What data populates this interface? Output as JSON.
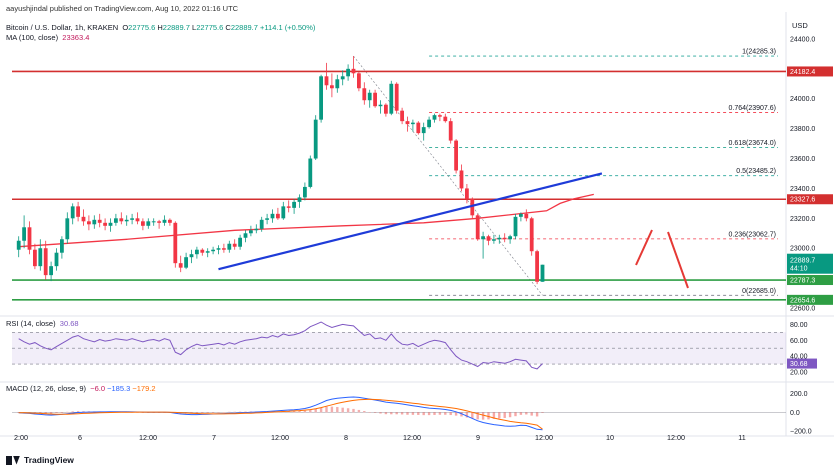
{
  "author_line": "aayushjindal published on TradingView.com, Aug 10, 2022 01:16 UTC",
  "symbol": {
    "name": "Bitcoin / U.S. Dollar, 1h, KRAKEN",
    "o_label": "O",
    "o": "22775.6",
    "h_label": "H",
    "h": "22889.7",
    "l_label": "L",
    "l": "22775.6",
    "c_label": "C",
    "c": "22889.7",
    "change": "+114.1 (+0.50%)"
  },
  "ma": {
    "label": "MA (100, close)",
    "value": "23363.4"
  },
  "rsi": {
    "label": "RSI (14, close)",
    "value": "30.68"
  },
  "macd": {
    "label": "MACD (12, 26, close, 9)",
    "v1": "−6.0",
    "v2": "−185.3",
    "v3": "−179.2"
  },
  "currency": "USD",
  "footer": "TradingView",
  "colors": {
    "up": "#089981",
    "down": "#f23645",
    "ma": "#f23645",
    "trend": "#1e3bd8",
    "hline": "#d32f2f",
    "support": "#2e9e44"
  },
  "chart_data": {
    "type": "candlestick",
    "x_ticks": [
      "2:00",
      "6",
      "12:00",
      "7",
      "12:00",
      "8",
      "12:00",
      "9",
      "12:00",
      "10",
      "12:00",
      "11"
    ],
    "y_ticks": [
      22600,
      22800,
      23000,
      23200,
      23400,
      23600,
      23800,
      24000,
      24200,
      24400
    ],
    "y_tick_labels": [
      "22600.0",
      "22800.0",
      "23000.0",
      "23200.0",
      "23400.0",
      "23600.0",
      "23800.0",
      "24000.0",
      "24200.0",
      "24400.0"
    ],
    "ylim": [
      22560,
      24540
    ],
    "candles": [
      [
        22990,
        23080,
        22940,
        23050
      ],
      [
        23050,
        23220,
        23000,
        23140
      ],
      [
        23140,
        23180,
        22960,
        22990
      ],
      [
        22990,
        23030,
        22860,
        22880
      ],
      [
        22880,
        23060,
        22850,
        23000
      ],
      [
        23000,
        23050,
        22790,
        22820
      ],
      [
        22820,
        22910,
        22780,
        22880
      ],
      [
        22880,
        23000,
        22850,
        22970
      ],
      [
        22970,
        23080,
        22930,
        23060
      ],
      [
        23060,
        23240,
        23030,
        23200
      ],
      [
        23200,
        23300,
        23160,
        23280
      ],
      [
        23280,
        23310,
        23180,
        23210
      ],
      [
        23210,
        23260,
        23150,
        23180
      ],
      [
        23180,
        23220,
        23120,
        23160
      ],
      [
        23160,
        23220,
        23130,
        23190
      ],
      [
        23190,
        23230,
        23140,
        23170
      ],
      [
        23170,
        23200,
        23120,
        23150
      ],
      [
        23150,
        23200,
        23110,
        23170
      ],
      [
        23170,
        23230,
        23150,
        23200
      ],
      [
        23200,
        23240,
        23160,
        23180
      ],
      [
        23180,
        23220,
        23150,
        23190
      ],
      [
        23190,
        23230,
        23160,
        23200
      ],
      [
        23200,
        23240,
        23160,
        23180
      ],
      [
        23180,
        23200,
        23120,
        23150
      ],
      [
        23150,
        23200,
        23130,
        23180
      ],
      [
        23180,
        23200,
        23150,
        23180
      ],
      [
        23180,
        23190,
        23130,
        23170
      ],
      [
        23170,
        23220,
        23150,
        23190
      ],
      [
        23190,
        23200,
        23150,
        23170
      ],
      [
        23170,
        23180,
        22870,
        22900
      ],
      [
        22900,
        22950,
        22840,
        22870
      ],
      [
        22870,
        22970,
        22860,
        22940
      ],
      [
        22940,
        22990,
        22900,
        22960
      ],
      [
        22960,
        23010,
        22930,
        22990
      ],
      [
        22990,
        23000,
        22950,
        22970
      ],
      [
        22970,
        23000,
        22940,
        22980
      ],
      [
        22980,
        23010,
        22960,
        22990
      ],
      [
        22990,
        23020,
        22960,
        23000
      ],
      [
        23000,
        23030,
        22970,
        22990
      ],
      [
        22990,
        23050,
        22970,
        23030
      ],
      [
        23030,
        23060,
        22990,
        23010
      ],
      [
        23010,
        23090,
        22990,
        23070
      ],
      [
        23070,
        23120,
        23040,
        23100
      ],
      [
        23100,
        23150,
        23080,
        23120
      ],
      [
        23120,
        23160,
        23100,
        23130
      ],
      [
        23130,
        23210,
        23110,
        23190
      ],
      [
        23190,
        23230,
        23160,
        23200
      ],
      [
        23200,
        23260,
        23170,
        23230
      ],
      [
        23230,
        23270,
        23190,
        23200
      ],
      [
        23200,
        23310,
        23190,
        23280
      ],
      [
        23280,
        23320,
        23240,
        23270
      ],
      [
        23270,
        23330,
        23230,
        23310
      ],
      [
        23310,
        23360,
        23270,
        23340
      ],
      [
        23340,
        23440,
        23320,
        23410
      ],
      [
        23410,
        23620,
        23400,
        23600
      ],
      [
        23600,
        23890,
        23590,
        23860
      ],
      [
        23860,
        24160,
        23840,
        24150
      ],
      [
        24150,
        24240,
        24060,
        24090
      ],
      [
        24090,
        24170,
        24010,
        24070
      ],
      [
        24070,
        24160,
        24040,
        24130
      ],
      [
        24130,
        24190,
        24090,
        24150
      ],
      [
        24150,
        24230,
        24120,
        24200
      ],
      [
        24200,
        24285,
        24140,
        24170
      ],
      [
        24170,
        24180,
        24050,
        24070
      ],
      [
        24070,
        24110,
        23960,
        23990
      ],
      [
        23990,
        24060,
        23940,
        24040
      ],
      [
        24040,
        24060,
        23940,
        23950
      ],
      [
        23950,
        23990,
        23900,
        23960
      ],
      [
        23960,
        23970,
        23880,
        23900
      ],
      [
        23900,
        24120,
        23890,
        24100
      ],
      [
        24100,
        24110,
        23900,
        23920
      ],
      [
        23920,
        23940,
        23830,
        23850
      ],
      [
        23850,
        23880,
        23780,
        23830
      ],
      [
        23830,
        23860,
        23780,
        23840
      ],
      [
        23840,
        23850,
        23760,
        23770
      ],
      [
        23770,
        23840,
        23720,
        23810
      ],
      [
        23810,
        23880,
        23800,
        23860
      ],
      [
        23860,
        23900,
        23840,
        23890
      ],
      [
        23890,
        23900,
        23850,
        23880
      ],
      [
        23880,
        23900,
        23840,
        23850
      ],
      [
        23850,
        23870,
        23700,
        23720
      ],
      [
        23720,
        23730,
        23500,
        23520
      ],
      [
        23520,
        23560,
        23380,
        23400
      ],
      [
        23400,
        23430,
        23300,
        23330
      ],
      [
        23330,
        23340,
        23200,
        23220
      ],
      [
        23220,
        23230,
        23050,
        23060
      ],
      [
        23060,
        23110,
        22930,
        23080
      ],
      [
        23080,
        23090,
        23020,
        23050
      ],
      [
        23050,
        23090,
        23030,
        23060
      ],
      [
        23060,
        23090,
        23030,
        23070
      ],
      [
        23070,
        23100,
        23040,
        23060
      ],
      [
        23060,
        23090,
        23030,
        23080
      ],
      [
        23080,
        23230,
        23060,
        23210
      ],
      [
        23210,
        23240,
        23180,
        23230
      ],
      [
        23230,
        23260,
        23180,
        23200
      ],
      [
        23200,
        23210,
        22950,
        22980
      ],
      [
        22980,
        22990,
        22760,
        22775.6
      ],
      [
        22775.6,
        22889.7,
        22775.6,
        22889.7
      ]
    ],
    "ma100": [
      [
        0,
        23010
      ],
      [
        20,
        23060
      ],
      [
        40,
        23120
      ],
      [
        60,
        23150
      ],
      [
        75,
        23170
      ],
      [
        85,
        23200
      ],
      [
        100,
        23250
      ],
      [
        110,
        23300
      ],
      [
        120,
        23330
      ],
      [
        135,
        23360
      ]
    ],
    "hlines": [
      {
        "value": 24182.4,
        "label": "24182.4",
        "color": "#d32f2f"
      },
      {
        "value": 23327.6,
        "label": "23327.6",
        "color": "#d32f2f"
      },
      {
        "value": 22787.3,
        "label": "22787.3",
        "color": "#2e9e44"
      },
      {
        "value": 22654.6,
        "label": "22654.6",
        "color": "#2e9e44"
      }
    ],
    "fib_levels": [
      {
        "label": "1(24285.3)",
        "value": 24285.3,
        "color": "#26a69a"
      },
      {
        "label": "0.764(23907.6)",
        "value": 23907.6,
        "color": "#f23645"
      },
      {
        "label": "0.618(23674.0)",
        "value": 23674.0,
        "color": "#089981"
      },
      {
        "label": "0.5(23485.2)",
        "value": 23485.2,
        "color": "#26a69a"
      },
      {
        "label": "0.236(23062.7)",
        "value": 23062.7,
        "color": "#f23645"
      },
      {
        "label": "0(22685.0)",
        "value": 22685.0,
        "color": "#787b86"
      }
    ],
    "price_tags": [
      {
        "label": "22889.7",
        "sub": "44:10",
        "color": "#089981"
      }
    ],
    "rsi": {
      "y_ticks": [
        20,
        40,
        60,
        80
      ],
      "y_tick_labels": [
        "20.00",
        "40.00",
        "60.00",
        "80.00"
      ],
      "ylim": [
        10,
        88
      ],
      "band": [
        30,
        70
      ],
      "values": [
        62,
        58,
        55,
        57,
        53,
        50,
        48,
        52,
        56,
        60,
        64,
        66,
        62,
        60,
        58,
        61,
        59,
        60,
        62,
        61,
        60,
        62,
        60,
        58,
        60,
        61,
        59,
        62,
        60,
        45,
        42,
        48,
        52,
        55,
        53,
        54,
        55,
        56,
        54,
        57,
        55,
        58,
        60,
        61,
        62,
        64,
        63,
        66,
        64,
        68,
        66,
        67,
        69,
        72,
        77,
        80,
        83,
        79,
        76,
        78,
        80,
        79,
        78,
        72,
        66,
        68,
        62,
        63,
        60,
        68,
        60,
        55,
        54,
        56,
        52,
        55,
        58,
        60,
        59,
        57,
        48,
        40,
        35,
        33,
        30,
        27,
        32,
        31,
        33,
        32,
        31,
        33,
        36,
        35,
        34,
        26,
        24,
        30.68
      ]
    },
    "macd": {
      "y_ticks": [
        -200,
        0,
        200
      ],
      "y_tick_labels": [
        "−200.0",
        "0.0",
        "200.0"
      ],
      "ylim": [
        -230,
        300
      ],
      "macd": [
        -5,
        -8,
        -12,
        -18,
        -22,
        -28,
        -30,
        -27,
        -22,
        -15,
        -8,
        -2,
        0,
        2,
        3,
        4,
        4,
        5,
        6,
        6,
        5,
        4,
        3,
        2,
        1,
        1,
        0,
        0,
        -1,
        -10,
        -18,
        -22,
        -24,
        -24,
        -22,
        -20,
        -18,
        -16,
        -14,
        -11,
        -9,
        -6,
        -3,
        0,
        3,
        6,
        9,
        13,
        16,
        20,
        24,
        28,
        33,
        40,
        55,
        75,
        100,
        125,
        140,
        150,
        155,
        160,
        162,
        158,
        150,
        140,
        130,
        120,
        108,
        102,
        96,
        88,
        78,
        70,
        62,
        52,
        45,
        40,
        36,
        30,
        20,
        5,
        -15,
        -40,
        -65,
        -90,
        -108,
        -120,
        -130,
        -138,
        -145,
        -148,
        -145,
        -138,
        -140,
        -160,
        -180,
        -185.3
      ],
      "signal": [
        -4,
        -5,
        -7,
        -9,
        -12,
        -15,
        -18,
        -20,
        -21,
        -20,
        -18,
        -15,
        -12,
        -9,
        -7,
        -5,
        -3,
        -2,
        -1,
        0,
        1,
        1,
        2,
        2,
        2,
        2,
        2,
        2,
        1,
        -1,
        -4,
        -7,
        -10,
        -13,
        -15,
        -16,
        -17,
        -17,
        -17,
        -16,
        -15,
        -13,
        -11,
        -9,
        -6,
        -4,
        -1,
        2,
        5,
        8,
        11,
        15,
        18,
        23,
        29,
        38,
        50,
        65,
        80,
        94,
        106,
        117,
        126,
        133,
        136,
        138,
        136,
        133,
        128,
        123,
        117,
        111,
        104,
        97,
        90,
        82,
        75,
        68,
        62,
        56,
        49,
        40,
        29,
        15,
        0,
        -15,
        -30,
        -45,
        -60,
        -73,
        -85,
        -96,
        -104,
        -111,
        -117,
        -125,
        -136,
        -179.2
      ]
    }
  }
}
